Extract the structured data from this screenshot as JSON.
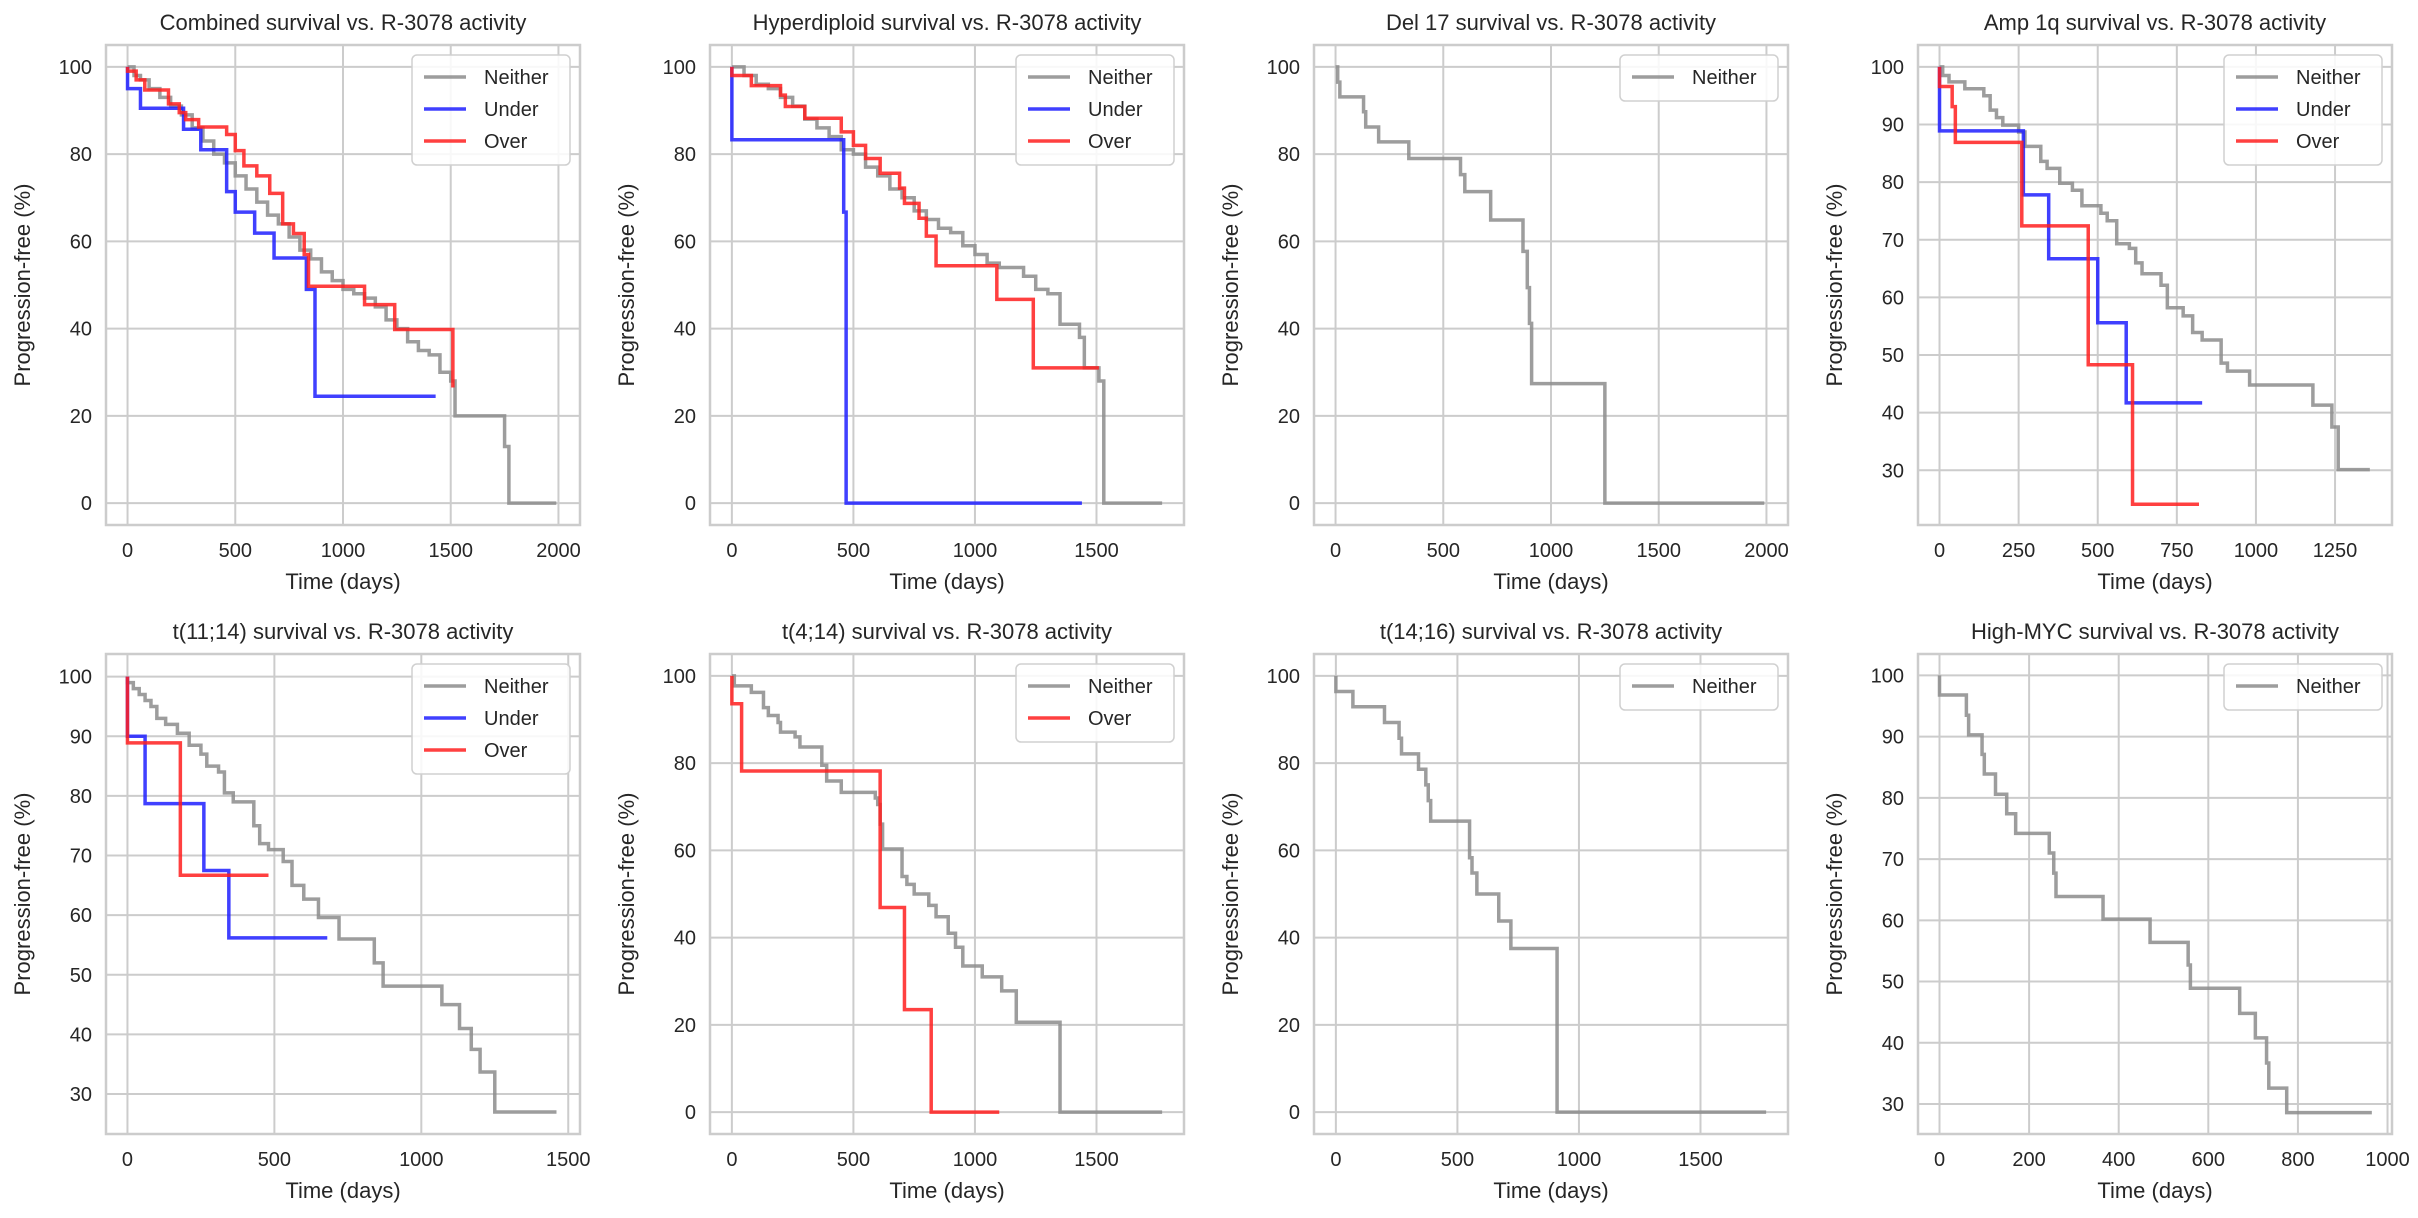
{
  "figure": {
    "series_colors": {
      "Neither": "#8c8c8c",
      "Under": "#1f1fff",
      "Over": "#ff1f1f"
    },
    "grid_color": "#cccccc",
    "ylabel": "Progression-free (%)",
    "xlabel": "Time (days)"
  },
  "chart_data": [
    {
      "type": "line",
      "title": "Combined survival vs. R-3078 activity",
      "xlabel": "Time (days)",
      "ylabel": "Progression-free (%)",
      "xlim": [
        -100,
        2100
      ],
      "ylim": [
        -5,
        105
      ],
      "xticks": [
        0,
        500,
        1000,
        1500,
        2000
      ],
      "yticks": [
        0,
        20,
        40,
        60,
        80,
        100
      ],
      "grid": true,
      "legend": "top-right",
      "series": [
        {
          "name": "Neither",
          "step": true,
          "x": [
            0,
            30,
            60,
            100,
            150,
            200,
            250,
            300,
            350,
            400,
            450,
            500,
            550,
            600,
            650,
            700,
            750,
            800,
            850,
            900,
            950,
            1000,
            1050,
            1100,
            1150,
            1200,
            1250,
            1300,
            1350,
            1400,
            1450,
            1500,
            1520,
            1750,
            1770,
            1990
          ],
          "y": [
            100,
            98,
            97,
            95,
            93,
            91,
            89,
            86,
            83,
            80,
            78,
            75,
            72,
            69,
            66,
            64,
            61,
            58,
            56,
            53,
            51,
            49,
            48,
            47,
            45,
            42,
            40,
            37,
            35,
            34,
            30,
            28,
            20,
            13,
            0,
            0
          ]
        },
        {
          "name": "Under",
          "step": true,
          "x": [
            0,
            60,
            260,
            340,
            460,
            500,
            590,
            680,
            830,
            870,
            1430
          ],
          "y": [
            95,
            90.5,
            85.7,
            81,
            71.4,
            66.7,
            61.9,
            56.2,
            49,
            24.5,
            24.5
          ]
        },
        {
          "name": "Over",
          "step": true,
          "x": [
            0,
            40,
            80,
            190,
            240,
            270,
            330,
            460,
            500,
            540,
            600,
            660,
            720,
            770,
            820,
            840,
            1100,
            1240,
            1510
          ],
          "y": [
            99,
            97,
            94.7,
            91.5,
            89.5,
            87.9,
            86.2,
            84.5,
            80.8,
            77.3,
            75,
            71,
            64,
            61.8,
            57,
            49.7,
            45.5,
            39.8,
            26.5
          ]
        }
      ],
      "end_x": {
        "Neither": 1990,
        "Under": 1430,
        "Over": 1510
      }
    },
    {
      "type": "line",
      "title": "Hyperdiploid survival vs. R-3078 activity",
      "xlabel": "Time (days)",
      "ylabel": "Progression-free (%)",
      "xlim": [
        -90,
        1860
      ],
      "ylim": [
        -5,
        105
      ],
      "xticks": [
        0,
        500,
        1000,
        1500
      ],
      "yticks": [
        0,
        20,
        40,
        60,
        80,
        100
      ],
      "grid": true,
      "legend": "top-right",
      "series": [
        {
          "name": "Neither",
          "step": true,
          "x": [
            0,
            50,
            100,
            150,
            200,
            250,
            300,
            350,
            400,
            450,
            500,
            550,
            600,
            650,
            700,
            750,
            800,
            850,
            900,
            950,
            1000,
            1050,
            1100,
            1150,
            1200,
            1250,
            1300,
            1350,
            1400,
            1430,
            1450,
            1510,
            1530,
            1770
          ],
          "y": [
            100,
            98,
            96,
            95,
            93,
            91,
            88,
            86,
            84,
            81,
            80,
            77,
            75,
            72,
            70,
            67,
            65,
            63,
            62,
            59,
            57,
            55,
            54,
            54,
            52,
            49,
            48,
            41,
            41,
            38,
            31,
            28,
            0,
            0
          ]
        },
        {
          "name": "Under",
          "step": true,
          "x": [
            0,
            460,
            470,
            1440
          ],
          "y": [
            83.3,
            66.7,
            0,
            0
          ]
        },
        {
          "name": "Over",
          "step": true,
          "x": [
            0,
            80,
            200,
            220,
            300,
            450,
            500,
            550,
            610,
            690,
            710,
            770,
            800,
            840,
            1090,
            1240,
            1510
          ],
          "y": [
            98,
            95.7,
            93.5,
            90.9,
            88.2,
            85.1,
            82,
            79,
            75.6,
            72.2,
            68.7,
            65.3,
            61.2,
            54.4,
            46.7,
            31,
            31
          ]
        }
      ],
      "end_x": {
        "Neither": 1770,
        "Under": 1440,
        "Over": 1510
      }
    },
    {
      "type": "line",
      "title": "Del 17 survival vs. R-3078 activity",
      "xlabel": "Time (days)",
      "ylabel": "Progression-free (%)",
      "xlim": [
        -100,
        2100
      ],
      "ylim": [
        -5,
        105
      ],
      "xticks": [
        0,
        500,
        1000,
        1500,
        2000
      ],
      "yticks": [
        0,
        20,
        40,
        60,
        80,
        100
      ],
      "grid": true,
      "legend": "top-right",
      "series": [
        {
          "name": "Neither",
          "step": true,
          "x": [
            0,
            10,
            20,
            130,
            140,
            200,
            340,
            580,
            600,
            720,
            870,
            890,
            900,
            910,
            1250,
            1990
          ],
          "y": [
            100,
            96.5,
            93.1,
            89.7,
            86.2,
            82.8,
            79,
            75.3,
            71.4,
            64.9,
            57.7,
            49.4,
            41.2,
            27.4,
            0,
            0
          ]
        }
      ],
      "end_x": {
        "Neither": 1990
      }
    },
    {
      "type": "line",
      "title": "Amp 1q survival vs. R-3078 activity",
      "xlabel": "Time (days)",
      "ylabel": "Progression-free (%)",
      "xlim": [
        -68,
        1430
      ],
      "ylim": [
        20.5,
        103.8
      ],
      "xticks": [
        0,
        250,
        500,
        750,
        1000,
        1250
      ],
      "yticks": [
        30,
        40,
        50,
        60,
        70,
        80,
        90,
        100
      ],
      "grid": true,
      "legend": "top-right",
      "series": [
        {
          "name": "Neither",
          "step": true,
          "x": [
            0,
            10,
            30,
            80,
            140,
            160,
            180,
            200,
            250,
            270,
            300,
            320,
            340,
            380,
            420,
            450,
            480,
            510,
            530,
            560,
            600,
            620,
            640,
            670,
            700,
            720,
            770,
            800,
            830,
            890,
            910,
            980,
            1180,
            1240,
            1260,
            1360
          ],
          "y": [
            100,
            98.5,
            97.4,
            96.2,
            95,
            92.5,
            91.2,
            89.9,
            88.7,
            86.2,
            86.2,
            83.6,
            82.4,
            79.8,
            78.6,
            75.9,
            75.9,
            74.6,
            73.3,
            69.3,
            68.5,
            66,
            64.1,
            64.1,
            62.1,
            58.2,
            56.8,
            53.9,
            52.6,
            48.6,
            47.2,
            44.8,
            41.3,
            37.5,
            30.1,
            30.1
          ]
        },
        {
          "name": "Under",
          "step": true,
          "x": [
            0,
            265,
            345,
            500,
            590,
            830
          ],
          "y": [
            88.9,
            77.8,
            66.7,
            55.6,
            41.7,
            41.7
          ]
        },
        {
          "name": "Over",
          "step": true,
          "x": [
            0,
            40,
            50,
            260,
            470,
            610,
            820
          ],
          "y": [
            96.6,
            93.1,
            86.9,
            72.4,
            48.3,
            24.1,
            24.1
          ]
        }
      ],
      "end_x": {
        "Neither": 1360,
        "Under": 830,
        "Over": 820
      }
    },
    {
      "type": "line",
      "title": "t(11;14) survival vs. R-3078 activity",
      "xlabel": "Time (days)",
      "ylabel": "Progression-free (%)",
      "xlim": [
        -73,
        1540
      ],
      "ylim": [
        23.3,
        103.8
      ],
      "xticks": [
        0,
        500,
        1000,
        1500
      ],
      "yticks": [
        30,
        40,
        50,
        60,
        70,
        80,
        90,
        100
      ],
      "grid": true,
      "legend": "top-right",
      "series": [
        {
          "name": "Neither",
          "step": true,
          "x": [
            0,
            20,
            40,
            60,
            80,
            100,
            130,
            170,
            210,
            250,
            270,
            310,
            330,
            360,
            430,
            450,
            480,
            530,
            560,
            600,
            650,
            720,
            840,
            870,
            1070,
            1130,
            1170,
            1200,
            1250,
            1460
          ],
          "y": [
            99,
            98,
            97,
            96,
            95,
            93,
            92,
            90.5,
            88.5,
            87,
            85,
            84,
            80.5,
            79,
            75,
            72,
            71,
            69,
            65,
            62.7,
            59.6,
            56,
            52,
            48.1,
            45,
            41,
            37.5,
            33.7,
            27,
            27
          ]
        },
        {
          "name": "Under",
          "step": true,
          "x": [
            0,
            60,
            260,
            345,
            680
          ],
          "y": [
            90,
            78.7,
            67.5,
            56.2,
            56.2
          ]
        },
        {
          "name": "Over",
          "step": true,
          "x": [
            0,
            180,
            480
          ],
          "y": [
            88.9,
            66.7,
            66.7
          ]
        }
      ],
      "end_x": {
        "Neither": 1460,
        "Under": 680,
        "Over": 480
      }
    },
    {
      "type": "line",
      "title": "t(4;14) survival vs. R-3078 activity",
      "xlabel": "Time (days)",
      "ylabel": "Progression-free (%)",
      "xlim": [
        -90,
        1860
      ],
      "ylim": [
        -5,
        105
      ],
      "xticks": [
        0,
        500,
        1000,
        1500
      ],
      "yticks": [
        0,
        20,
        40,
        60,
        80,
        100
      ],
      "grid": true,
      "legend": "top-right",
      "series": [
        {
          "name": "Neither",
          "step": true,
          "x": [
            0,
            10,
            80,
            130,
            150,
            190,
            200,
            260,
            280,
            370,
            390,
            450,
            590,
            600,
            610,
            620,
            700,
            720,
            750,
            810,
            840,
            890,
            920,
            950,
            1030,
            1110,
            1170,
            1350,
            1770
          ],
          "y": [
            100,
            97.7,
            96.2,
            92.7,
            90.9,
            89.3,
            87.1,
            86,
            83.7,
            79.5,
            75.9,
            73.3,
            72,
            70.5,
            66,
            60.3,
            54,
            52.2,
            50,
            47.4,
            44.8,
            41,
            37.8,
            33.5,
            31,
            27.8,
            20.6,
            0,
            0
          ]
        },
        {
          "name": "Over",
          "step": true,
          "x": [
            0,
            40,
            610,
            710,
            820,
            1100
          ],
          "y": [
            93.6,
            78.2,
            46.9,
            23.5,
            0,
            0
          ]
        }
      ],
      "end_x": {
        "Neither": 1770,
        "Over": 1100
      }
    },
    {
      "type": "line",
      "title": "t(14;16) survival vs. R-3078 activity",
      "xlabel": "Time (days)",
      "ylabel": "Progression-free (%)",
      "xlim": [
        -90,
        1860
      ],
      "ylim": [
        -5,
        105
      ],
      "xticks": [
        0,
        500,
        1000,
        1500
      ],
      "yticks": [
        0,
        20,
        40,
        60,
        80,
        100
      ],
      "grid": true,
      "legend": "top-right",
      "series": [
        {
          "name": "Neither",
          "step": true,
          "x": [
            0,
            70,
            200,
            260,
            270,
            340,
            370,
            380,
            390,
            550,
            560,
            580,
            670,
            720,
            900,
            910,
            1770
          ],
          "y": [
            96.4,
            92.9,
            89.3,
            85.7,
            82.1,
            78.6,
            75,
            71.4,
            66.7,
            58.3,
            54.8,
            50,
            43.8,
            37.5,
            37.5,
            0,
            0
          ]
        }
      ],
      "end_x": {
        "Neither": 1770
      }
    },
    {
      "type": "line",
      "title": "High-MYC survival vs. R-3078 activity",
      "xlabel": "Time (days)",
      "ylabel": "Progression-free (%)",
      "xlim": [
        -48,
        1010
      ],
      "ylim": [
        25.1,
        103.5
      ],
      "xticks": [
        0,
        200,
        400,
        600,
        800,
        1000
      ],
      "yticks": [
        30,
        40,
        50,
        60,
        70,
        80,
        90,
        100
      ],
      "grid": true,
      "legend": "top-right",
      "series": [
        {
          "name": "Neither",
          "step": true,
          "x": [
            0,
            60,
            65,
            95,
            100,
            125,
            150,
            170,
            245,
            255,
            260,
            365,
            470,
            555,
            560,
            670,
            705,
            730,
            735,
            775,
            965
          ],
          "y": [
            96.8,
            93.5,
            90.3,
            87.1,
            83.9,
            80.6,
            77.4,
            74.2,
            71,
            67.7,
            63.9,
            60.2,
            56.4,
            52.7,
            48.9,
            44.8,
            40.8,
            36.7,
            32.6,
            28.6,
            28.6
          ]
        }
      ],
      "end_x": {
        "Neither": 965
      }
    }
  ]
}
